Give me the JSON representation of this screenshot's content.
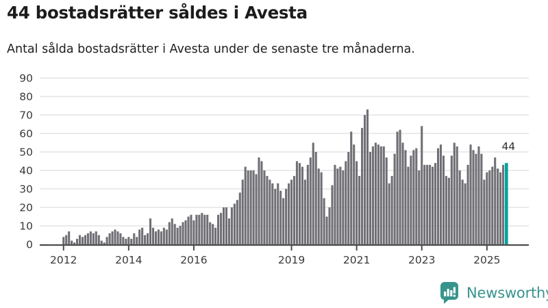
{
  "header": {
    "title": "44 bostadsrätter såldes i Avesta",
    "subtitle": "Antal sålda bostadsrätter i Avesta under de senaste tre månaderna."
  },
  "chart_data": {
    "type": "bar",
    "title": "44 bostadsrätter såldes i Avesta",
    "subtitle": "Antal sålda bostadsrätter i Avesta under de senaste tre månaderna.",
    "frequency": "monthly",
    "x_start": "2012-01",
    "x_end": "2025-08",
    "ylim": [
      0,
      90
    ],
    "yticks": [
      0,
      10,
      20,
      30,
      40,
      50,
      60,
      70,
      80,
      90
    ],
    "grid": true,
    "xticks": [
      {
        "label": "2012",
        "month_index": 0
      },
      {
        "label": "2014",
        "month_index": 24
      },
      {
        "label": "2016",
        "month_index": 48
      },
      {
        "label": "2019",
        "month_index": 84
      },
      {
        "label": "2021",
        "month_index": 108
      },
      {
        "label": "2023",
        "month_index": 132
      },
      {
        "label": "2025",
        "month_index": 156
      }
    ],
    "values": [
      4,
      5,
      7,
      2,
      1,
      3,
      5,
      4,
      5,
      6,
      7,
      6,
      7,
      5,
      2,
      1,
      4,
      6,
      7,
      8,
      7,
      6,
      4,
      3,
      4,
      3,
      6,
      4,
      8,
      9,
      5,
      6,
      14,
      9,
      7,
      8,
      7,
      9,
      8,
      12,
      14,
      11,
      9,
      10,
      12,
      13,
      15,
      16,
      13,
      16,
      16,
      17,
      16,
      16,
      12,
      11,
      9,
      16,
      17,
      20,
      20,
      14,
      20,
      22,
      24,
      28,
      35,
      42,
      40,
      40,
      40,
      38,
      47,
      45,
      40,
      37,
      35,
      33,
      30,
      33,
      29,
      25,
      30,
      33,
      35,
      37,
      45,
      44,
      42,
      35,
      43,
      47,
      55,
      50,
      41,
      39,
      25,
      15,
      20,
      32,
      43,
      41,
      42,
      40,
      45,
      50,
      61,
      54,
      45,
      37,
      63,
      70,
      73,
      50,
      53,
      55,
      54,
      53,
      53,
      47,
      33,
      37,
      49,
      61,
      62,
      55,
      51,
      42,
      48,
      51,
      52,
      40,
      64,
      43,
      43,
      43,
      42,
      44,
      52,
      54,
      48,
      37,
      36,
      48,
      55,
      53,
      40,
      35,
      33,
      43,
      54,
      51,
      49,
      53,
      49,
      35,
      39,
      40,
      42,
      47,
      41,
      39,
      43,
      44
    ],
    "highlight": {
      "index": 163,
      "value": 44,
      "label": "44"
    },
    "colors": {
      "bar": "#706f75",
      "highlight": "#00a39e",
      "grid": "#e4e4e4",
      "axis": "#4c4c4c",
      "tick_text": "#3a3a3a",
      "annotation_text": "#2e2e2e"
    },
    "legend": null
  },
  "annotation": {
    "last_value_label": "44"
  },
  "footer": {
    "brand": "Newsworthy",
    "brand_color": "#37948c",
    "icon": "bar-chart-speech-bubble-icon"
  }
}
